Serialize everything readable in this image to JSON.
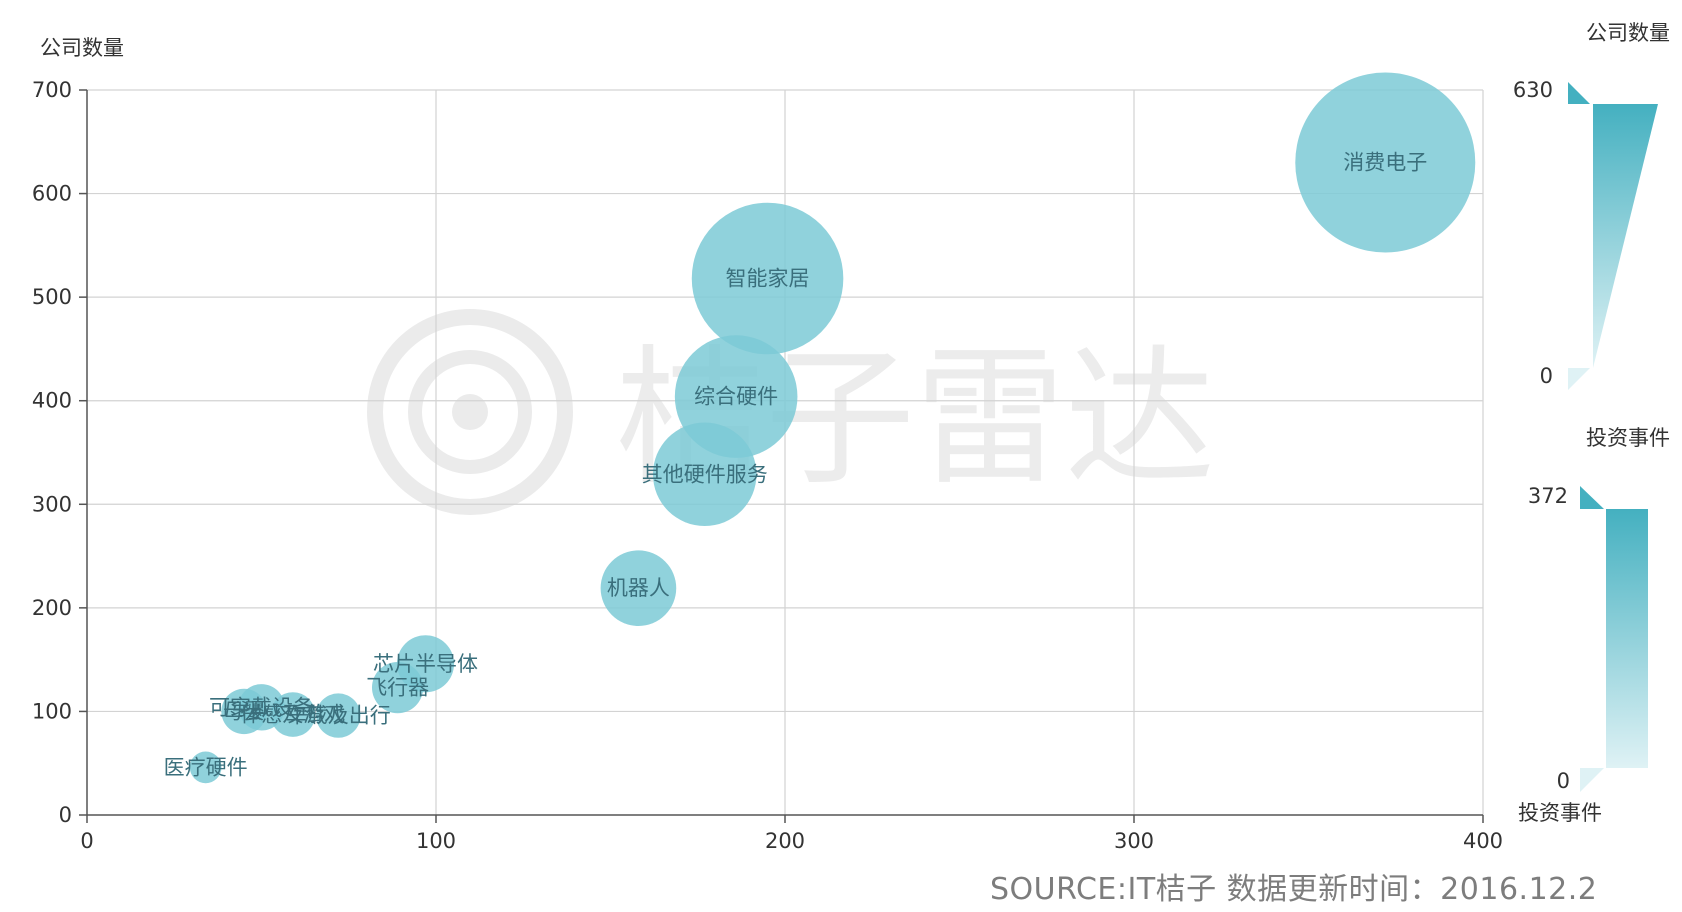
{
  "chart_data": {
    "type": "scatter",
    "ylabel": "公司数量",
    "xlim": [
      0,
      400
    ],
    "ylim": [
      0,
      700
    ],
    "x_ticks": [
      0,
      100,
      200,
      300,
      400
    ],
    "y_ticks": [
      0,
      100,
      200,
      300,
      400,
      500,
      600,
      700
    ],
    "grid": true,
    "size_encodes": "公司数量",
    "points": [
      {
        "label": "消费电子",
        "x": 372,
        "y": 630,
        "size": 630
      },
      {
        "label": "智能家居",
        "x": 195,
        "y": 518,
        "size": 518
      },
      {
        "label": "综合硬件",
        "x": 186,
        "y": 404,
        "size": 404
      },
      {
        "label": "其他硬件服务",
        "x": 177,
        "y": 329,
        "size": 329
      },
      {
        "label": "机器人",
        "x": 158,
        "y": 219,
        "size": 219
      },
      {
        "label": "芯片半导体",
        "x": 97,
        "y": 146,
        "size": 146
      },
      {
        "label": "飞行器",
        "x": 89,
        "y": 123,
        "size": 123
      },
      {
        "label": "可穿戴设备",
        "x": 50,
        "y": 104,
        "size": 104
      },
      {
        "label": "母婴",
        "x": 45,
        "y": 100,
        "size": 100
      },
      {
        "label": "体感及游戏",
        "x": 59,
        "y": 97,
        "size": 97
      },
      {
        "label": "车载及出行",
        "x": 72,
        "y": 96,
        "size": 96
      },
      {
        "label": "医疗硬件",
        "x": 34,
        "y": 46,
        "size": 46
      }
    ],
    "visual_map": [
      {
        "title": "公司数量",
        "max": "630",
        "min": "0",
        "dimension": "size"
      },
      {
        "title": "投资事件",
        "max": "372",
        "min": "0",
        "dimension": "x",
        "bottom_label": "投资事件"
      }
    ],
    "colors": {
      "bubble": "#7ccad6",
      "bubble_opacity": 0.85,
      "bubble_label": "#3a6f7c",
      "visual_map_dark": "#44b0c0",
      "visual_map_light": "#dff2f5",
      "grid": "#d3d3d3",
      "axis": "#555555"
    }
  },
  "watermark": "桔子雷达",
  "source_text": "SOURCE:IT桔子 数据更新时间：2016.12.2"
}
